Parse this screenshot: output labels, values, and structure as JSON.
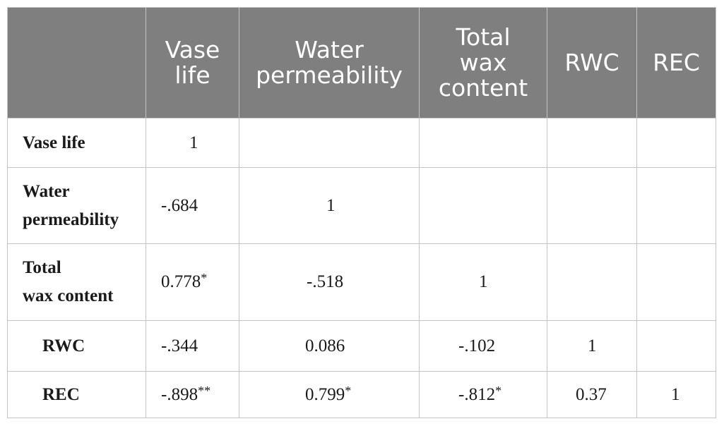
{
  "table": {
    "header": {
      "corner": "",
      "columns": [
        {
          "line1": "Vase",
          "line2": "life",
          "line3": ""
        },
        {
          "line1": "Water",
          "line2": "permeability",
          "line3": ""
        },
        {
          "line1": "Total",
          "line2": "wax",
          "line3": "content"
        },
        {
          "line1": "RWC",
          "line2": "",
          "line3": ""
        },
        {
          "line1": "REC",
          "line2": "",
          "line3": ""
        }
      ]
    },
    "rows": [
      {
        "label_line1": "Vase life",
        "label_line2": "",
        "cells": [
          {
            "value": "1",
            "mark": ""
          },
          {
            "value": "",
            "mark": ""
          },
          {
            "value": "",
            "mark": ""
          },
          {
            "value": "",
            "mark": ""
          },
          {
            "value": "",
            "mark": ""
          }
        ]
      },
      {
        "label_line1": "Water",
        "label_line2": "permeability",
        "cells": [
          {
            "value": "-.684",
            "mark": ""
          },
          {
            "value": "1",
            "mark": ""
          },
          {
            "value": "",
            "mark": ""
          },
          {
            "value": "",
            "mark": ""
          },
          {
            "value": "",
            "mark": ""
          }
        ]
      },
      {
        "label_line1": "Total",
        "label_line2": "wax content",
        "cells": [
          {
            "value": "0.778",
            "mark": "*"
          },
          {
            "value": "-.518",
            "mark": ""
          },
          {
            "value": "1",
            "mark": ""
          },
          {
            "value": "",
            "mark": ""
          },
          {
            "value": "",
            "mark": ""
          }
        ]
      },
      {
        "label_line1": "RWC",
        "label_line2": "",
        "cells": [
          {
            "value": "-.344",
            "mark": ""
          },
          {
            "value": "0.086",
            "mark": ""
          },
          {
            "value": "-.102",
            "mark": ""
          },
          {
            "value": "1",
            "mark": ""
          },
          {
            "value": "",
            "mark": ""
          }
        ]
      },
      {
        "label_line1": "REC",
        "label_line2": "",
        "cells": [
          {
            "value": "-.898",
            "mark": "**"
          },
          {
            "value": "0.799",
            "mark": "*"
          },
          {
            "value": "-.812",
            "mark": "*"
          },
          {
            "value": "0.37",
            "mark": ""
          },
          {
            "value": "1",
            "mark": ""
          }
        ]
      }
    ]
  }
}
